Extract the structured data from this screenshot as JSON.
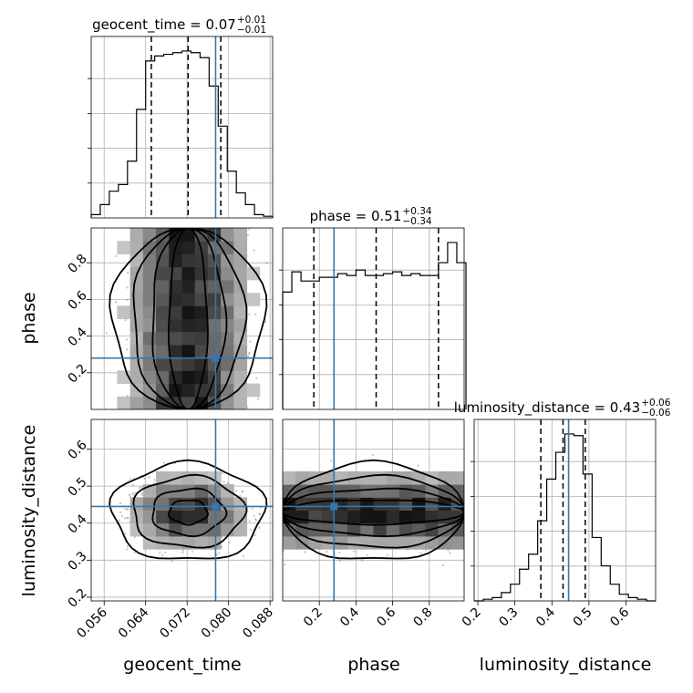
{
  "chart_data": {
    "type": "corner",
    "parameters": [
      "geocent_time",
      "phase",
      "luminosity_distance"
    ],
    "truth": {
      "geocent_time": 0.0775,
      "phase": 0.28,
      "luminosity_distance": 0.445
    },
    "truth_color": "#3776ab",
    "titles": [
      {
        "param": "geocent_time",
        "prefix": "geocent_time = ",
        "median": "0.07",
        "plus": "+0.01",
        "minus": "−0.01"
      },
      {
        "param": "phase",
        "prefix": "phase = ",
        "median": "0.51",
        "plus": "+0.34",
        "minus": "−0.34"
      },
      {
        "param": "luminosity_distance",
        "prefix": "luminosity_distance = ",
        "median": "0.43",
        "plus": "+0.06",
        "minus": "−0.06"
      }
    ],
    "quantiles": {
      "geocent_time": [
        0.0651,
        0.0722,
        0.0785
      ],
      "phase": [
        0.17,
        0.51,
        0.85
      ],
      "luminosity_distance": [
        0.37,
        0.43,
        0.49
      ]
    },
    "ranges": {
      "geocent_time": [
        0.0535,
        0.0885
      ],
      "phase": [
        0.0,
        0.99
      ],
      "luminosity_distance": [
        0.19,
        0.68
      ]
    },
    "ticks": {
      "geocent_time": {
        "values": [
          0.056,
          0.064,
          0.072,
          0.08,
          0.088
        ],
        "labels": [
          "0.056",
          "0.064",
          "0.072",
          "0.080",
          "0.088"
        ]
      },
      "phase": {
        "values": [
          0.2,
          0.4,
          0.6,
          0.8
        ],
        "labels": [
          "0.2",
          "0.4",
          "0.6",
          "0.8"
        ]
      },
      "luminosity_distance": {
        "values": [
          0.2,
          0.3,
          0.4,
          0.5,
          0.6
        ],
        "labels": [
          "0.2",
          "0.3",
          "0.4",
          "0.5",
          "0.6"
        ]
      }
    },
    "histograms": {
      "geocent_time": {
        "edges_start": 0.0535,
        "bin_width": 0.00175,
        "counts": [
          0.02,
          0.08,
          0.16,
          0.2,
          0.34,
          0.65,
          0.94,
          0.97,
          0.98,
          0.99,
          1.0,
          0.99,
          0.96,
          0.79,
          0.55,
          0.28,
          0.15,
          0.08,
          0.02,
          0.01
        ]
      },
      "phase": {
        "edges_start": 0.0,
        "bin_width": 0.05,
        "counts": [
          0.64,
          0.75,
          0.7,
          0.7,
          0.72,
          0.72,
          0.74,
          0.73,
          0.76,
          0.73,
          0.73,
          0.74,
          0.75,
          0.73,
          0.74,
          0.73,
          0.73,
          0.8,
          0.91,
          0.8
        ]
      },
      "luminosity_distance": {
        "edges_start": 0.19,
        "bin_width": 0.0245,
        "counts": [
          0.0,
          0.01,
          0.02,
          0.05,
          0.1,
          0.19,
          0.28,
          0.48,
          0.73,
          0.89,
          1.0,
          0.99,
          0.76,
          0.38,
          0.21,
          0.1,
          0.04,
          0.02,
          0.01,
          0.0
        ]
      }
    },
    "grid": true,
    "color": "#000000"
  }
}
